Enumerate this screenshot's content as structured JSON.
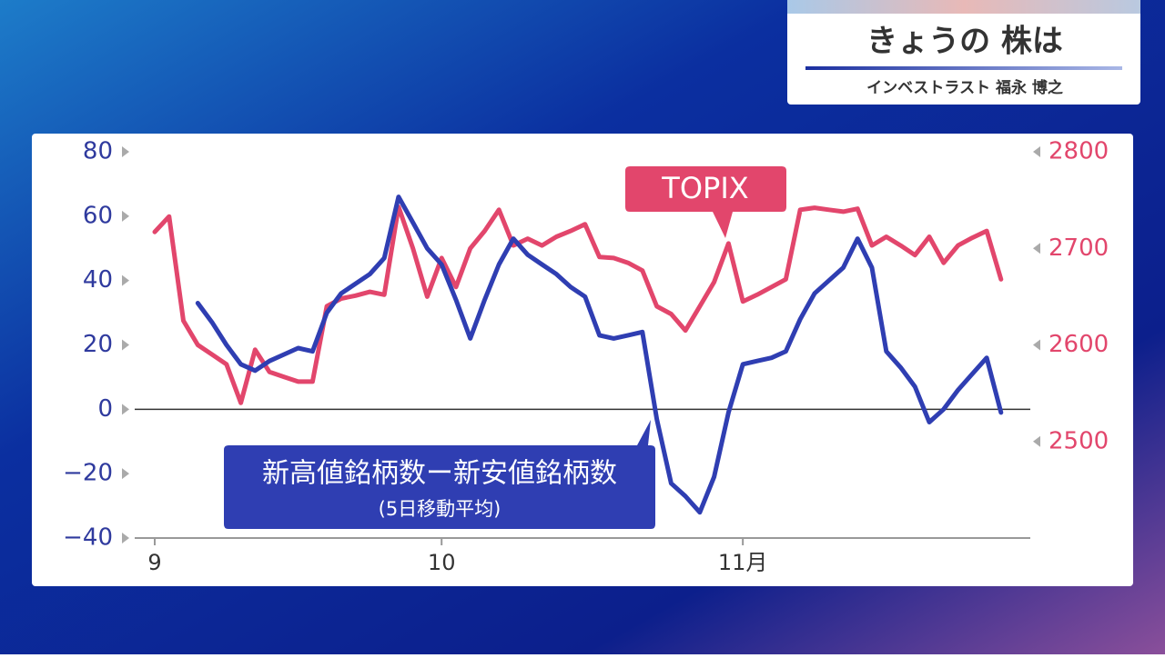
{
  "header": {
    "title": "きょうの 株は",
    "presenter": "インベストラスト 福永 博之"
  },
  "chart_data": {
    "type": "line",
    "categories": [
      "9",
      null,
      null,
      null,
      null,
      null,
      null,
      null,
      null,
      null,
      null,
      null,
      null,
      null,
      null,
      null,
      null,
      null,
      null,
      null,
      "10",
      null,
      null,
      null,
      null,
      null,
      null,
      null,
      null,
      null,
      null,
      null,
      null,
      null,
      null,
      null,
      null,
      null,
      null,
      null,
      null,
      "11月",
      null,
      null,
      null,
      null,
      null,
      null,
      null,
      null,
      null,
      null,
      null,
      null,
      null,
      null,
      null,
      null,
      null,
      null
    ],
    "series": [
      {
        "name": "新高値銘柄数ー新安値銘柄数",
        "subtitle": "(5日移動平均)",
        "color": "#2f3eb2",
        "axis": "y",
        "values": [
          null,
          null,
          null,
          33,
          27,
          20,
          14,
          12,
          15,
          17,
          19,
          18,
          30,
          36,
          39,
          42,
          47,
          66,
          58,
          50,
          45,
          34,
          22,
          34,
          45,
          53,
          48,
          45,
          42,
          38,
          35,
          23,
          22,
          23,
          24,
          -3,
          -23,
          -27,
          -32,
          -21,
          -1,
          14,
          15,
          16,
          18,
          28,
          36,
          40,
          44,
          53,
          44,
          18,
          13,
          7,
          -4,
          0,
          6,
          11,
          16,
          -1
        ]
      },
      {
        "name": "TOPIX",
        "color": "#e2466c",
        "axis": "y2",
        "values": [
          2717,
          2733,
          2625,
          2600,
          2590,
          2580,
          2540,
          2595,
          2572,
          2567,
          2562,
          2562,
          2640,
          2648,
          2651,
          2655,
          2652,
          2743,
          2700,
          2650,
          2690,
          2660,
          2700,
          2718,
          2740,
          2703,
          2710,
          2703,
          2712,
          2718,
          2725,
          2691,
          2690,
          2685,
          2677,
          2640,
          2632,
          2615,
          2640,
          2665,
          2705,
          2645,
          2652,
          2660,
          2668,
          2740,
          2742,
          2740,
          2738,
          2741,
          2703,
          2712,
          2703,
          2693,
          2712,
          2685,
          2703,
          2711,
          2718,
          2668
        ]
      }
    ],
    "ylim": [
      -40,
      80
    ],
    "yticks": [
      80,
      60,
      40,
      20,
      0,
      {
        "value": -20,
        "label": "−20"
      },
      {
        "value": -40,
        "label": "−40"
      }
    ],
    "y2lim": [
      2400,
      2800
    ],
    "y2ticks": [
      2800,
      2700,
      2600,
      2500
    ],
    "zero_line": true
  }
}
